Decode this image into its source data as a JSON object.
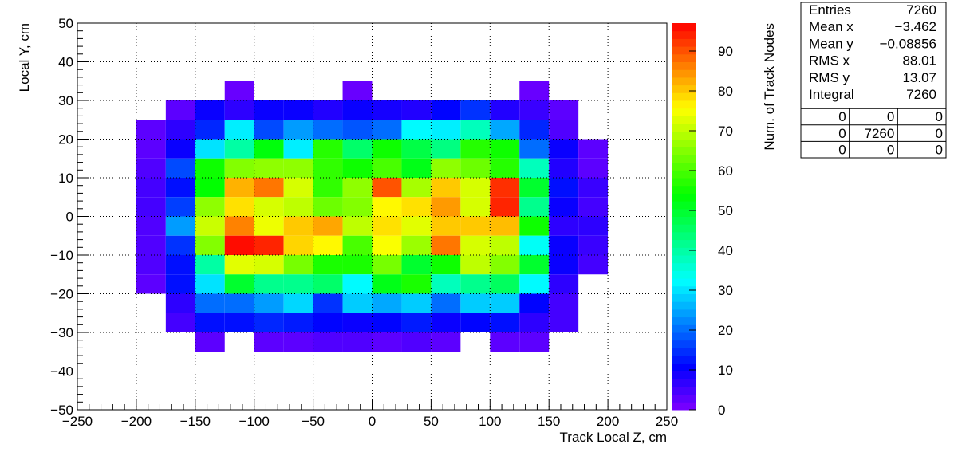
{
  "chart_data": {
    "type": "heatmap",
    "xlabel": "Track Local Z, cm",
    "ylabel": "Local Y, cm",
    "zlabel": "Num. of Track Nodes",
    "xlim": [
      -250,
      250
    ],
    "xticks": [
      {
        "value": -250,
        "label": "−250"
      },
      {
        "value": -200,
        "label": "−200"
      },
      {
        "value": -150,
        "label": "−150"
      },
      {
        "value": -100,
        "label": "−100"
      },
      {
        "value": -50,
        "label": "−50"
      },
      0,
      50,
      100,
      150,
      200,
      250
    ],
    "ylim": [
      -50,
      50
    ],
    "yticks": [
      {
        "value": -50,
        "label": "−50"
      },
      {
        "value": -40,
        "label": "−40"
      },
      {
        "value": -30,
        "label": "−30"
      },
      {
        "value": -20,
        "label": "−20"
      },
      {
        "value": -10,
        "label": "−10"
      },
      0,
      10,
      20,
      30,
      40,
      50
    ],
    "zlim": [
      0,
      97
    ],
    "zticks": [
      0,
      10,
      20,
      30,
      40,
      50,
      60,
      70,
      80,
      90
    ],
    "grid": true,
    "xbins": [
      -200,
      -175,
      -150,
      -125,
      -100,
      -75,
      -50,
      -25,
      0,
      25,
      50,
      75,
      100,
      125,
      150,
      175,
      200
    ],
    "ybins": [
      35,
      30,
      25,
      20,
      15,
      10,
      5,
      0,
      -5,
      -10,
      -15,
      -20,
      -25,
      -30,
      -35
    ],
    "z": [
      [
        null,
        null,
        null,
        2,
        null,
        null,
        null,
        2,
        null,
        null,
        null,
        null,
        null,
        2,
        null,
        null
      ],
      [
        null,
        3,
        10,
        7,
        10,
        10,
        8,
        10,
        9,
        8,
        11,
        15,
        8,
        6,
        3,
        null
      ],
      [
        3,
        7,
        14,
        31,
        17,
        24,
        20,
        18,
        20,
        32,
        31,
        38,
        25,
        14,
        4,
        null
      ],
      [
        3,
        10,
        30,
        40,
        53,
        31,
        57,
        45,
        55,
        48,
        43,
        57,
        55,
        20,
        10,
        3
      ],
      [
        4,
        17,
        55,
        65,
        66,
        66,
        58,
        55,
        60,
        52,
        66,
        63,
        57,
        38,
        8,
        3
      ],
      [
        5,
        12,
        54,
        82,
        87,
        72,
        58,
        66,
        90,
        68,
        80,
        72,
        93,
        50,
        12,
        6
      ],
      [
        5,
        16,
        66,
        78,
        72,
        70,
        63,
        65,
        76,
        78,
        84,
        72,
        94,
        42,
        10,
        5
      ],
      [
        4,
        24,
        71,
        86,
        74,
        80,
        83,
        70,
        78,
        73,
        80,
        80,
        81,
        55,
        7,
        7
      ],
      [
        4,
        15,
        65,
        96,
        94,
        79,
        76,
        60,
        75,
        67,
        87,
        72,
        70,
        33,
        10,
        6
      ],
      [
        4,
        12,
        40,
        73,
        72,
        64,
        56,
        56,
        64,
        50,
        55,
        70,
        65,
        50,
        10,
        5
      ],
      [
        3,
        12,
        30,
        50,
        42,
        42,
        45,
        32,
        52,
        56,
        38,
        42,
        46,
        32,
        7,
        null
      ],
      [
        null,
        7,
        20,
        20,
        24,
        29,
        15,
        28,
        25,
        28,
        20,
        28,
        28,
        11,
        5,
        null
      ],
      [
        null,
        5,
        12,
        12,
        14,
        13,
        11,
        10,
        11,
        13,
        10,
        11,
        12,
        7,
        5,
        null
      ],
      [
        null,
        null,
        3,
        null,
        3,
        3,
        4,
        4,
        3,
        4,
        3,
        null,
        3,
        3,
        null,
        null
      ]
    ],
    "stats": [
      {
        "label": "Entries",
        "value": "7260"
      },
      {
        "label": "Mean x",
        "value": "−3.462"
      },
      {
        "label": "Mean y",
        "value": "−0.08856"
      },
      {
        "label": "RMS x",
        "value": "88.01"
      },
      {
        "label": "RMS y",
        "value": "13.07"
      },
      {
        "label": "Integral",
        "value": "7260"
      }
    ],
    "overflow": [
      [
        "0",
        "0",
        "0"
      ],
      [
        "0",
        "7260",
        "0"
      ],
      [
        "0",
        "0",
        "0"
      ]
    ]
  }
}
